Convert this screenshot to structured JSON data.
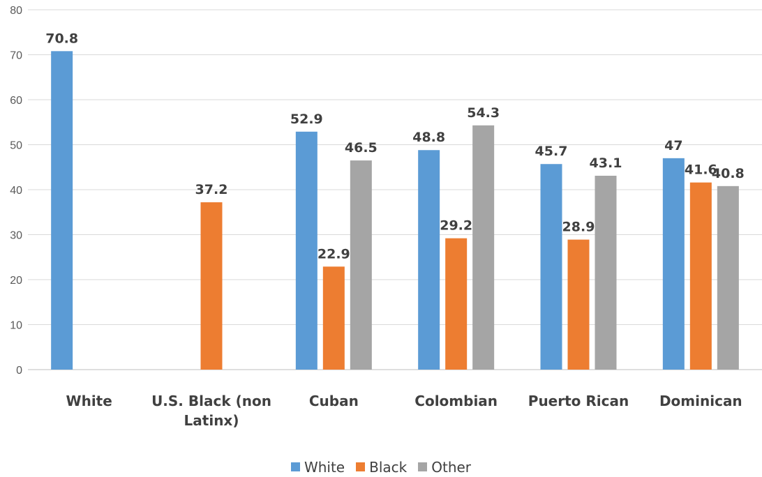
{
  "chart_data": {
    "type": "bar",
    "categories": [
      [
        "White"
      ],
      [
        "U.S. Black (non",
        "Latinx)"
      ],
      [
        "Cuban"
      ],
      [
        "Colombian"
      ],
      [
        "Puerto Rican"
      ],
      [
        "Dominican"
      ]
    ],
    "series": [
      {
        "name": "White",
        "color": "#5b9bd5",
        "values": [
          70.8,
          null,
          52.9,
          48.8,
          45.7,
          47
        ]
      },
      {
        "name": "Black",
        "color": "#ed7d31",
        "values": [
          null,
          37.2,
          22.9,
          29.2,
          28.9,
          41.6
        ]
      },
      {
        "name": "Other",
        "color": "#a5a5a5",
        "values": [
          null,
          null,
          46.5,
          54.3,
          43.1,
          40.8
        ]
      }
    ],
    "y_ticks": [
      0,
      10,
      20,
      30,
      40,
      50,
      60,
      70,
      80
    ],
    "ylim": [
      0,
      80
    ],
    "grid": true,
    "legend_position": "bottom",
    "title": "",
    "xlabel": "",
    "ylabel": ""
  }
}
